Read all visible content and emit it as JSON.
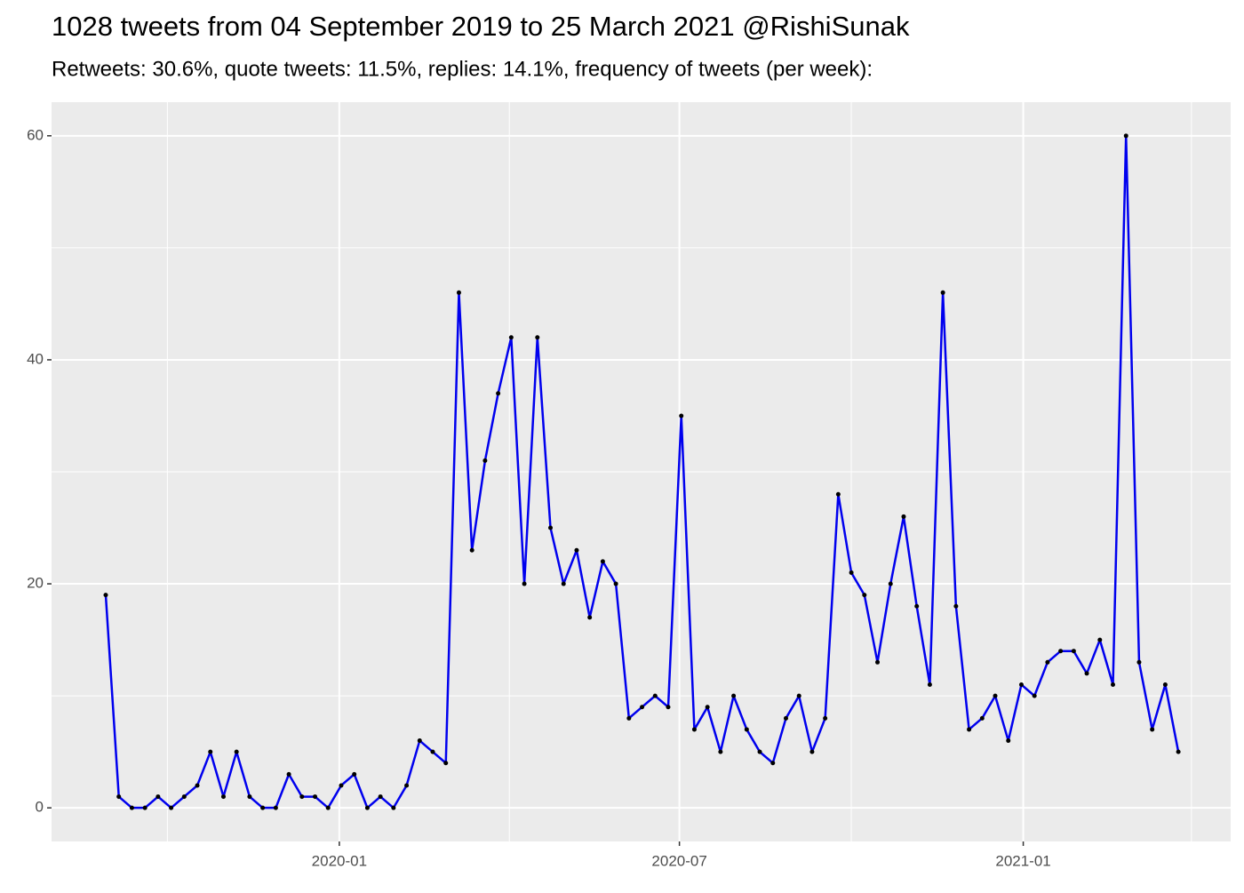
{
  "chart_data": {
    "type": "line",
    "title": "1028 tweets from 04 September 2019 to 25 March 2021 @RishiSunak",
    "subtitle": "Retweets: 30.6%, quote tweets: 11.5%, replies: 14.1%, frequency of tweets (per week):",
    "x": [
      "2019-08-29",
      "2019-09-05",
      "2019-09-12",
      "2019-09-19",
      "2019-09-26",
      "2019-10-03",
      "2019-10-10",
      "2019-10-17",
      "2019-10-24",
      "2019-10-31",
      "2019-11-07",
      "2019-11-14",
      "2019-11-21",
      "2019-11-28",
      "2019-12-05",
      "2019-12-12",
      "2019-12-19",
      "2019-12-26",
      "2020-01-02",
      "2020-01-09",
      "2020-01-16",
      "2020-01-23",
      "2020-01-30",
      "2020-02-06",
      "2020-02-13",
      "2020-02-20",
      "2020-02-27",
      "2020-03-05",
      "2020-03-12",
      "2020-03-19",
      "2020-03-26",
      "2020-04-02",
      "2020-04-09",
      "2020-04-16",
      "2020-04-23",
      "2020-04-30",
      "2020-05-07",
      "2020-05-14",
      "2020-05-21",
      "2020-05-28",
      "2020-06-04",
      "2020-06-11",
      "2020-06-18",
      "2020-06-25",
      "2020-07-02",
      "2020-07-09",
      "2020-07-16",
      "2020-07-23",
      "2020-07-30",
      "2020-08-06",
      "2020-08-13",
      "2020-08-20",
      "2020-08-27",
      "2020-09-03",
      "2020-09-10",
      "2020-09-17",
      "2020-09-24",
      "2020-10-01",
      "2020-10-08",
      "2020-10-15",
      "2020-10-22",
      "2020-10-29",
      "2020-11-05",
      "2020-11-12",
      "2020-11-19",
      "2020-11-26",
      "2020-12-03",
      "2020-12-10",
      "2020-12-17",
      "2020-12-24",
      "2020-12-31",
      "2021-01-07",
      "2021-01-14",
      "2021-01-21",
      "2021-01-28",
      "2021-02-04",
      "2021-02-11",
      "2021-02-18",
      "2021-02-25",
      "2021-03-04",
      "2021-03-11",
      "2021-03-18",
      "2021-03-25"
    ],
    "series": [
      {
        "color": "#0000ee",
        "point_color": "#000000",
        "values": [
          19,
          1,
          0,
          0,
          1,
          0,
          1,
          2,
          5,
          1,
          5,
          1,
          0,
          0,
          3,
          1,
          1,
          0,
          2,
          3,
          0,
          1,
          0,
          2,
          6,
          5,
          4,
          46,
          23,
          31,
          37,
          42,
          20,
          42,
          25,
          20,
          23,
          17,
          22,
          20,
          8,
          9,
          10,
          9,
          35,
          7,
          9,
          5,
          10,
          7,
          5,
          4,
          8,
          10,
          5,
          8,
          28,
          21,
          19,
          13,
          20,
          26,
          18,
          11,
          46,
          18,
          7,
          8,
          10,
          6,
          11,
          10,
          13,
          14,
          14,
          12,
          15,
          11,
          60,
          13,
          7,
          11,
          5
        ]
      }
    ],
    "xlim": [
      "2019-07-31",
      "2021-04-22"
    ],
    "xticks": [
      {
        "value": "2020-01-01",
        "label": "2020-01"
      },
      {
        "value": "2020-07-01",
        "label": "2020-07"
      },
      {
        "value": "2021-01-01",
        "label": "2021-01"
      }
    ],
    "xminor": [
      "2019-10-01",
      "2020-04-01",
      "2020-10-01",
      "2021-04-01"
    ],
    "ylim": [
      -3,
      63
    ],
    "yticks": [
      0,
      20,
      40,
      60
    ],
    "yminor": [
      10,
      30,
      50
    ],
    "grid": true
  }
}
